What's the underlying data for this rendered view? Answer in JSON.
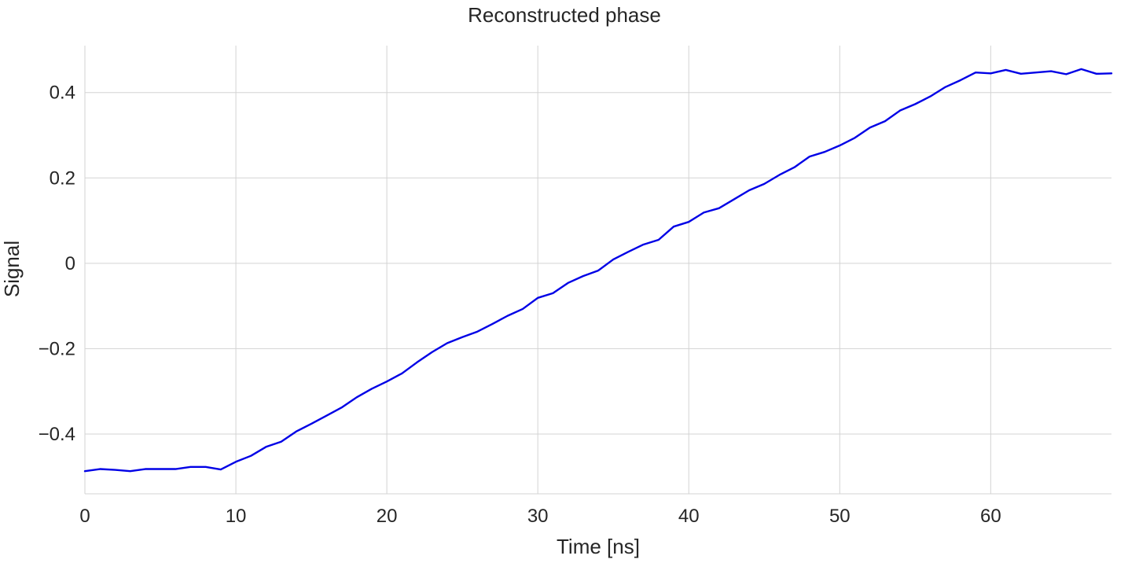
{
  "chart_data": {
    "type": "line",
    "title": "Reconstructed phase",
    "xlabel": "Time [ns]",
    "ylabel": "Signal",
    "xlim": [
      0,
      68
    ],
    "ylim": [
      -0.54,
      0.51
    ],
    "xticks": [
      0,
      10,
      20,
      30,
      40,
      50,
      60
    ],
    "xtick_labels": [
      "0",
      "10",
      "20",
      "30",
      "40",
      "50",
      "60"
    ],
    "yticks": [
      -0.4,
      -0.2,
      0,
      0.2,
      0.4
    ],
    "ytick_labels": [
      "−0.4",
      "−0.2",
      "0",
      "0.2",
      "0.4"
    ],
    "grid": true,
    "line_color": "#0000e6",
    "series": [
      {
        "x": [
          0,
          1,
          2,
          3,
          4,
          5,
          6,
          7,
          8,
          9,
          10,
          11,
          12,
          13,
          14,
          15,
          16,
          17,
          18,
          19,
          20,
          21,
          22,
          23,
          24,
          25,
          26,
          27,
          28,
          29,
          30,
          31,
          32,
          33,
          34,
          35,
          36,
          37,
          38,
          39,
          40,
          41,
          42,
          43,
          44,
          45,
          46,
          47,
          48,
          49,
          50,
          51,
          52,
          53,
          54,
          55,
          56,
          57,
          58,
          59,
          60,
          61,
          62,
          63,
          64,
          65,
          66,
          67,
          68
        ],
        "values": [
          -0.487,
          -0.482,
          -0.484,
          -0.487,
          -0.482,
          -0.482,
          -0.482,
          -0.477,
          -0.477,
          -0.483,
          -0.465,
          -0.451,
          -0.43,
          -0.418,
          -0.394,
          -0.376,
          -0.357,
          -0.338,
          -0.314,
          -0.294,
          -0.277,
          -0.258,
          -0.232,
          -0.208,
          -0.187,
          -0.173,
          -0.16,
          -0.142,
          -0.123,
          -0.107,
          -0.081,
          -0.07,
          -0.046,
          -0.03,
          -0.017,
          0.009,
          0.027,
          0.044,
          0.055,
          0.086,
          0.097,
          0.119,
          0.129,
          0.15,
          0.171,
          0.186,
          0.207,
          0.225,
          0.25,
          0.261,
          0.276,
          0.294,
          0.318,
          0.333,
          0.358,
          0.373,
          0.391,
          0.413,
          0.429,
          0.447,
          0.445,
          0.453,
          0.444,
          0.447,
          0.45,
          0.443,
          0.455,
          0.444,
          0.445
        ]
      }
    ]
  }
}
